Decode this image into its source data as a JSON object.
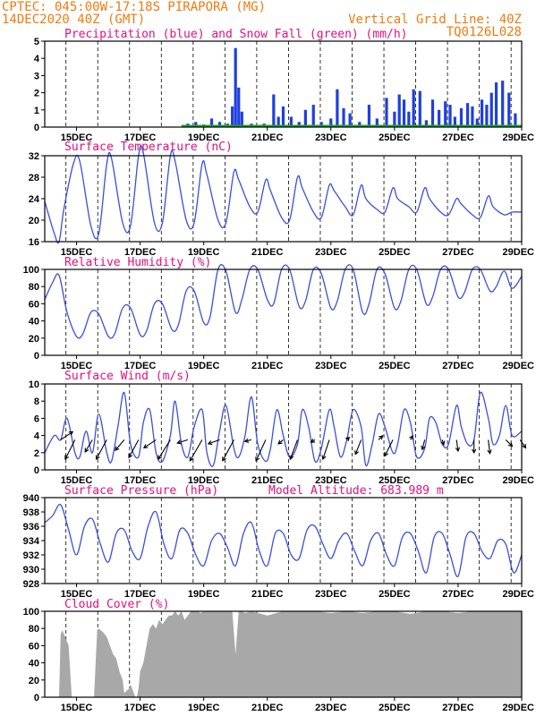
{
  "header": {
    "line1_left": "CPTEC:   045:00W-17:18S  PIRAPORA (MG)",
    "line2_left": "14DEC2020 40Z (GMT)",
    "line1_right": "Vertical Grid Line: 40Z",
    "line2_right": "TQ0126L028"
  },
  "colors": {
    "header": "#f07a10",
    "title": "#e0107e",
    "line": "#3a4fd8",
    "precip": "#1e3fe0",
    "snow": "#20a020",
    "cloud": "#a8a8a8",
    "wind": "#000000"
  },
  "x_axis": {
    "labels": [
      "15DEC",
      "17DEC",
      "19DEC",
      "21DEC",
      "23DEC",
      "25DEC",
      "27DEC",
      "29DEC"
    ],
    "label_day": [
      15,
      17,
      19,
      21,
      23,
      25,
      27,
      29
    ],
    "vgrid_day": [
      14.667,
      15.667,
      16.667,
      17.667,
      18.667,
      19.667,
      20.667,
      21.667,
      22.667,
      23.667,
      24.667,
      25.667,
      26.667,
      27.667,
      28.667
    ],
    "range_day": [
      14,
      29
    ]
  },
  "chart_data": [
    {
      "type": "bar",
      "title": "Precipitation (blue) and Snow Fall (green) (mm/h)",
      "ylim": [
        0,
        5
      ],
      "yticks": [
        "0",
        "1",
        "2",
        "3",
        "4",
        "5"
      ],
      "x_day": [
        18.5,
        18.75,
        19.0,
        19.25,
        19.5,
        19.75,
        19.9,
        20.0,
        20.1,
        20.2,
        20.5,
        20.9,
        21.2,
        21.35,
        21.5,
        21.75,
        22.0,
        22.2,
        22.45,
        22.7,
        23.0,
        23.2,
        23.4,
        23.6,
        23.9,
        24.2,
        24.45,
        24.75,
        25.0,
        25.15,
        25.3,
        25.45,
        25.6,
        25.8,
        26.0,
        26.2,
        26.4,
        26.6,
        26.75,
        26.9,
        27.1,
        27.3,
        27.45,
        27.6,
        27.75,
        27.9,
        28.05,
        28.2,
        28.4,
        28.6,
        28.8
      ],
      "values": [
        0.2,
        0.3,
        0.15,
        0.5,
        0.3,
        0.2,
        1.2,
        4.6,
        2.3,
        0.9,
        0.2,
        0.2,
        1.9,
        0.6,
        1.2,
        0.6,
        0.3,
        1.0,
        1.3,
        0.3,
        0.5,
        2.2,
        1.1,
        0.8,
        0.3,
        1.3,
        0.5,
        1.7,
        0.9,
        1.9,
        1.6,
        0.9,
        2.2,
        2.1,
        0.4,
        1.6,
        1.0,
        1.5,
        1.3,
        0.6,
        1.1,
        1.4,
        1.2,
        0.5,
        1.6,
        1.3,
        2.0,
        2.6,
        2.7,
        2.0,
        0.8
      ],
      "snow_level": 0.08
    },
    {
      "type": "line",
      "title": "Surface Temperature (nC)",
      "ylim": [
        16,
        32
      ],
      "yticks": [
        "16",
        "20",
        "24",
        "28",
        "32"
      ],
      "x_day": [
        14.0,
        14.3,
        14.45,
        14.6,
        14.9,
        15.1,
        15.45,
        15.7,
        15.95,
        16.1,
        16.45,
        16.7,
        16.95,
        17.1,
        17.45,
        17.7,
        17.95,
        18.1,
        18.45,
        18.7,
        18.95,
        19.1,
        19.45,
        19.7,
        19.95,
        20.1,
        20.45,
        20.7,
        20.95,
        21.1,
        21.45,
        21.7,
        21.95,
        22.1,
        22.45,
        22.7,
        22.95,
        23.1,
        23.45,
        23.7,
        23.95,
        24.1,
        24.45,
        24.7,
        24.95,
        25.1,
        25.45,
        25.7,
        25.95,
        26.1,
        26.45,
        26.7,
        26.95,
        27.1,
        27.45,
        27.7,
        27.95,
        28.1,
        28.45,
        28.7,
        29.0
      ],
      "values": [
        23.5,
        17.5,
        16.0,
        22.0,
        30.5,
        31.0,
        19.0,
        17.5,
        30.5,
        31.5,
        19.5,
        19.0,
        32.0,
        32.5,
        19.5,
        19.5,
        32.0,
        31.0,
        20.0,
        19.5,
        30.5,
        28.5,
        20.0,
        19.5,
        29.0,
        27.5,
        22.5,
        21.5,
        27.5,
        25.5,
        20.5,
        20.0,
        28.0,
        26.0,
        21.5,
        20.5,
        26.5,
        25.5,
        22.5,
        21.0,
        26.5,
        24.0,
        22.0,
        21.5,
        26.0,
        24.0,
        22.5,
        21.5,
        26.0,
        24.0,
        21.5,
        21.0,
        24.0,
        23.0,
        21.0,
        20.5,
        24.5,
        22.5,
        21.0,
        21.5,
        21.5
      ]
    },
    {
      "type": "line",
      "title": "Relative Humidity (%)",
      "ylim": [
        0,
        100
      ],
      "yticks": [
        "0",
        "20",
        "40",
        "60",
        "80",
        "100"
      ],
      "x_day": [
        14.0,
        14.25,
        14.45,
        14.7,
        15.0,
        15.2,
        15.45,
        15.7,
        16.0,
        16.2,
        16.45,
        16.7,
        17.0,
        17.2,
        17.45,
        17.7,
        18.0,
        18.2,
        18.45,
        18.7,
        19.0,
        19.2,
        19.45,
        19.7,
        20.0,
        20.2,
        20.45,
        20.7,
        21.0,
        21.2,
        21.45,
        21.7,
        22.0,
        22.2,
        22.45,
        22.7,
        23.0,
        23.2,
        23.45,
        23.7,
        24.0,
        24.2,
        24.45,
        24.7,
        25.0,
        25.2,
        25.45,
        25.7,
        26.0,
        26.2,
        26.45,
        26.7,
        27.0,
        27.2,
        27.45,
        27.7,
        28.0,
        28.2,
        28.45,
        28.7,
        29.0
      ],
      "values": [
        65.0,
        85.0,
        93.0,
        50.0,
        22.0,
        25.0,
        50.0,
        48.0,
        22.0,
        25.0,
        55.0,
        55.0,
        24.0,
        28.0,
        60.0,
        60.0,
        30.0,
        35.0,
        75.0,
        75.0,
        38.0,
        45.0,
        100.0,
        98.0,
        50.0,
        65.0,
        100.0,
        100.0,
        65.0,
        60.0,
        100.0,
        100.0,
        57.0,
        63.0,
        100.0,
        95.0,
        55.0,
        63.0,
        100.0,
        100.0,
        50.0,
        60.0,
        100.0,
        95.0,
        55.0,
        63.0,
        100.0,
        100.0,
        60.0,
        68.0,
        100.0,
        100.0,
        68.0,
        73.0,
        100.0,
        100.0,
        75.0,
        80.0,
        98.0,
        78.0,
        92.0
      ]
    },
    {
      "type": "line",
      "title": "Surface Wind (m/s)",
      "ylim": [
        0,
        10
      ],
      "yticks": [
        "0",
        "2",
        "4",
        "6",
        "8",
        "10"
      ],
      "x_day": [
        14.0,
        14.3,
        14.5,
        14.7,
        14.95,
        15.1,
        15.3,
        15.5,
        15.7,
        15.95,
        16.1,
        16.3,
        16.5,
        16.7,
        16.95,
        17.1,
        17.3,
        17.5,
        17.7,
        17.95,
        18.1,
        18.3,
        18.5,
        18.7,
        18.95,
        19.1,
        19.3,
        19.5,
        19.7,
        19.95,
        20.1,
        20.3,
        20.5,
        20.7,
        20.95,
        21.1,
        21.3,
        21.5,
        21.7,
        21.95,
        22.1,
        22.3,
        22.5,
        22.7,
        22.95,
        23.1,
        23.3,
        23.5,
        23.7,
        23.95,
        24.1,
        24.3,
        24.5,
        24.7,
        24.95,
        25.1,
        25.3,
        25.5,
        25.7,
        25.95,
        26.1,
        26.3,
        26.5,
        26.7,
        26.95,
        27.1,
        27.3,
        27.5,
        27.7,
        27.95,
        28.1,
        28.3,
        28.5,
        28.7,
        29.0
      ],
      "values": [
        2.0,
        4.0,
        3.5,
        6.0,
        2.0,
        1.5,
        4.5,
        2.0,
        6.5,
        2.0,
        1.0,
        5.0,
        9.0,
        3.0,
        1.5,
        5.5,
        7.0,
        2.0,
        1.0,
        4.0,
        8.0,
        3.0,
        1.5,
        5.0,
        7.0,
        2.0,
        0.5,
        4.5,
        7.5,
        2.5,
        1.5,
        4.0,
        8.5,
        3.0,
        1.0,
        2.5,
        7.0,
        4.0,
        1.5,
        3.0,
        7.0,
        5.0,
        1.0,
        2.5,
        7.0,
        5.0,
        1.5,
        3.5,
        7.0,
        5.0,
        0.5,
        3.0,
        6.5,
        5.0,
        2.0,
        3.0,
        7.0,
        5.5,
        1.5,
        2.5,
        6.0,
        5.5,
        3.0,
        3.0,
        7.5,
        5.0,
        3.0,
        3.5,
        9.0,
        6.0,
        3.0,
        4.0,
        7.5,
        4.0,
        4.5
      ],
      "vectors_day": [
        14.5,
        14.95,
        15.5,
        15.95,
        16.5,
        16.95,
        17.5,
        17.95,
        18.5,
        18.95,
        19.5,
        19.95,
        20.5,
        20.95,
        21.5,
        21.95,
        22.5,
        22.95,
        23.5,
        23.95,
        24.5,
        24.95,
        25.5,
        25.95,
        26.5,
        26.95,
        27.5,
        27.95,
        28.5,
        28.95
      ],
      "vectors_u": [
        1.5,
        -1.2,
        -0.9,
        -1.3,
        -1.1,
        -1.2,
        -1.5,
        -1.5,
        -1.3,
        -1.5,
        -1.4,
        -1.4,
        -0.8,
        -1.2,
        -0.6,
        -0.9,
        -0.5,
        -0.8,
        0.3,
        -0.7,
        0.5,
        -1.0,
        0.3,
        -0.3,
        0.2,
        0.2,
        0.0,
        0.2,
        0.8,
        0.7
      ],
      "vectors_v": [
        1.0,
        -2.4,
        -1.5,
        -2.4,
        -1.3,
        -2.2,
        -1.0,
        -2.4,
        -0.4,
        -2.6,
        -0.5,
        -2.6,
        -0.2,
        -2.6,
        -0.5,
        -2.4,
        -0.3,
        -2.4,
        0.3,
        -1.8,
        0.5,
        -2.0,
        0.5,
        -1.2,
        -0.6,
        -1.4,
        -1.6,
        -1.7,
        -0.8,
        -1.0
      ]
    },
    {
      "type": "line",
      "title": "Surface Pressure (hPa)",
      "annotation": "Model Altitude: 683.989 m",
      "ylim": [
        928,
        940
      ],
      "yticks": [
        "928",
        "930",
        "932",
        "934",
        "936",
        "938",
        "940"
      ],
      "x_day": [
        14.0,
        14.25,
        14.5,
        14.75,
        15.0,
        15.25,
        15.5,
        15.75,
        16.0,
        16.25,
        16.5,
        16.75,
        17.0,
        17.25,
        17.5,
        17.75,
        18.0,
        18.25,
        18.5,
        18.75,
        19.0,
        19.25,
        19.5,
        19.75,
        20.0,
        20.25,
        20.5,
        20.75,
        21.0,
        21.25,
        21.5,
        21.75,
        22.0,
        22.25,
        22.5,
        22.75,
        23.0,
        23.25,
        23.5,
        23.75,
        24.0,
        24.25,
        24.5,
        24.75,
        25.0,
        25.25,
        25.5,
        25.75,
        26.0,
        26.25,
        26.5,
        26.75,
        27.0,
        27.25,
        27.5,
        27.75,
        28.0,
        28.25,
        28.5,
        28.75,
        29.0
      ],
      "values": [
        936.5,
        937.5,
        939.0,
        935.5,
        932.0,
        936.0,
        937.0,
        933.5,
        931.0,
        935.0,
        935.5,
        932.5,
        931.5,
        936.0,
        938.0,
        933.5,
        931.5,
        935.5,
        935.0,
        932.0,
        930.5,
        934.0,
        935.0,
        933.0,
        930.5,
        935.0,
        936.5,
        932.5,
        930.5,
        935.0,
        935.0,
        932.0,
        931.5,
        935.5,
        936.0,
        933.5,
        931.5,
        934.0,
        935.0,
        932.5,
        930.5,
        934.0,
        935.0,
        932.0,
        930.5,
        934.5,
        935.0,
        932.5,
        929.5,
        934.5,
        935.0,
        932.0,
        929.0,
        934.5,
        935.0,
        932.5,
        931.5,
        934.0,
        933.5,
        929.5,
        932.0
      ]
    },
    {
      "type": "area",
      "title": "Cloud Cover (%)",
      "ylim": [
        0,
        100
      ],
      "yticks": [
        "0",
        "20",
        "40",
        "60",
        "80",
        "100"
      ],
      "x_day": [
        14.0,
        14.1,
        14.25,
        14.3,
        14.45,
        14.5,
        14.55,
        14.6,
        14.75,
        14.85,
        15.1,
        15.2,
        15.3,
        15.45,
        15.55,
        15.65,
        15.7,
        15.85,
        15.95,
        16.05,
        16.15,
        16.25,
        16.35,
        16.45,
        16.5,
        16.65,
        16.7,
        16.8,
        16.85,
        16.9,
        16.95,
        17.0,
        17.1,
        17.2,
        17.3,
        17.4,
        17.5,
        17.6,
        17.7,
        17.8,
        17.9,
        18.0,
        18.1,
        18.2,
        18.3,
        18.4,
        18.5,
        18.6,
        18.7,
        18.8,
        18.9,
        19.0,
        19.5,
        19.9,
        20.0,
        20.1,
        20.2,
        20.3,
        20.5,
        21.0,
        21.5,
        22.0,
        22.5,
        23.0,
        23.5,
        24.0,
        24.5,
        25.0,
        25.5,
        26.0,
        26.5,
        27.0,
        27.5,
        28.0,
        28.5,
        29.0
      ],
      "values": [
        0,
        0,
        0,
        0,
        0,
        73,
        78,
        74,
        60,
        0,
        0,
        0,
        0,
        0,
        0,
        78,
        80,
        75,
        70,
        60,
        50,
        45,
        30,
        20,
        5,
        10,
        15,
        5,
        0,
        0,
        10,
        30,
        40,
        60,
        80,
        85,
        80,
        90,
        85,
        90,
        95,
        95,
        100,
        95,
        100,
        90,
        95,
        100,
        100,
        100,
        98,
        100,
        100,
        100,
        50,
        100,
        100,
        98,
        100,
        95,
        100,
        100,
        100,
        98,
        100,
        98,
        100,
        100,
        97,
        100,
        100,
        98,
        100,
        100,
        100,
        100
      ]
    }
  ]
}
